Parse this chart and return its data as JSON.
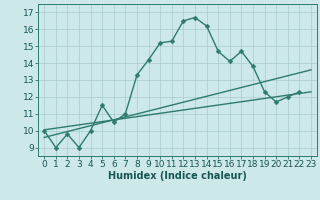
{
  "title": "",
  "xlabel": "Humidex (Indice chaleur)",
  "bg_color": "#cce8e8",
  "grid_color": "#aacccc",
  "line_color": "#2e7b6e",
  "xlim": [
    -0.5,
    23.5
  ],
  "ylim": [
    8.5,
    17.5
  ],
  "xticks": [
    0,
    1,
    2,
    3,
    4,
    5,
    6,
    7,
    8,
    9,
    10,
    11,
    12,
    13,
    14,
    15,
    16,
    17,
    18,
    19,
    20,
    21,
    22,
    23
  ],
  "yticks": [
    9,
    10,
    11,
    12,
    13,
    14,
    15,
    16,
    17
  ],
  "main_x": [
    0,
    1,
    2,
    3,
    4,
    5,
    6,
    7,
    8,
    9,
    10,
    11,
    12,
    13,
    14,
    15,
    16,
    17,
    18,
    19,
    20,
    21,
    22
  ],
  "main_y": [
    10,
    9,
    9.8,
    9,
    10,
    11.5,
    10.5,
    11,
    13.3,
    14.2,
    15.2,
    15.3,
    16.5,
    16.7,
    16.2,
    14.7,
    14.1,
    14.7,
    13.8,
    12.3,
    11.7,
    12,
    12.3
  ],
  "line2_x": [
    0,
    23
  ],
  "line2_y": [
    9.6,
    13.6
  ],
  "line3_x": [
    0,
    23
  ],
  "line3_y": [
    10.05,
    12.3
  ],
  "marker_size": 2.5,
  "line_width": 1.0,
  "font_size": 6.5
}
